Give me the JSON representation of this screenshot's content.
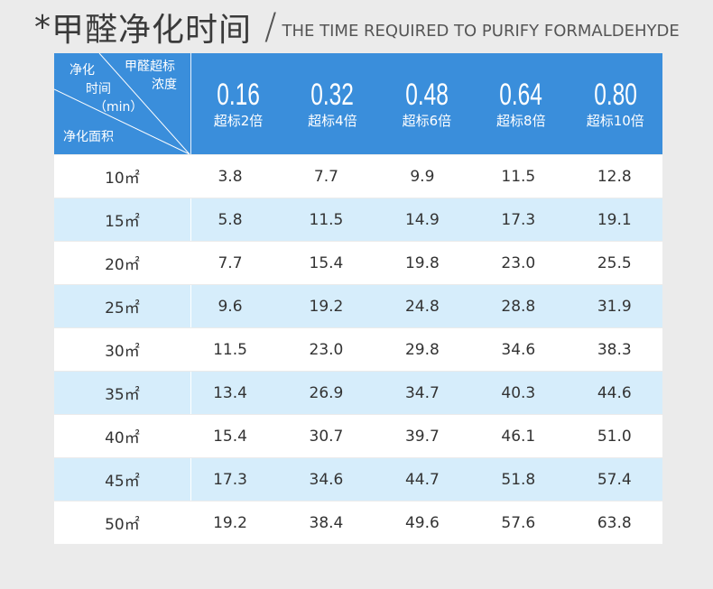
{
  "title": {
    "prefix": "*",
    "cn": "甲醛净化时间",
    "slash": "/",
    "en": "THE TIME REQUIRED TO PURIFY FORMALDEHYDE"
  },
  "corner": {
    "concentration_label_line1": "甲醛超标",
    "concentration_label_line2": "浓度",
    "time_label_line1": "净化",
    "time_label_line2": "时间",
    "time_label_line3": "（min）",
    "area_label": "净化面积"
  },
  "columns": [
    {
      "value": "0.16",
      "multiple": "超标2倍"
    },
    {
      "value": "0.32",
      "multiple": "超标4倍"
    },
    {
      "value": "0.48",
      "multiple": "超标6倍"
    },
    {
      "value": "0.64",
      "multiple": "超标8倍"
    },
    {
      "value": "0.80",
      "multiple": "超标10倍"
    }
  ],
  "rows": [
    {
      "area": "10㎡",
      "values": [
        "3.8",
        "7.7",
        "9.9",
        "11.5",
        "12.8"
      ]
    },
    {
      "area": "15㎡",
      "values": [
        "5.8",
        "11.5",
        "14.9",
        "17.3",
        "19.1"
      ]
    },
    {
      "area": "20㎡",
      "values": [
        "7.7",
        "15.4",
        "19.8",
        "23.0",
        "25.5"
      ]
    },
    {
      "area": "25㎡",
      "values": [
        "9.6",
        "19.2",
        "24.8",
        "28.8",
        "31.9"
      ]
    },
    {
      "area": "30㎡",
      "values": [
        "11.5",
        "23.0",
        "29.8",
        "34.6",
        "38.3"
      ]
    },
    {
      "area": "35㎡",
      "values": [
        "13.4",
        "26.9",
        "34.7",
        "40.3",
        "44.6"
      ]
    },
    {
      "area": "40㎡",
      "values": [
        "15.4",
        "30.7",
        "39.7",
        "46.1",
        "51.0"
      ]
    },
    {
      "area": "45㎡",
      "values": [
        "17.3",
        "34.6",
        "44.7",
        "51.8",
        "57.4"
      ]
    },
    {
      "area": "50㎡",
      "values": [
        "19.2",
        "38.4",
        "49.6",
        "57.6",
        "63.8"
      ]
    }
  ],
  "colors": {
    "header_bg": "#3a8edb",
    "row_alt_bg": "#d6edfb",
    "page_bg": "#ebebeb"
  }
}
